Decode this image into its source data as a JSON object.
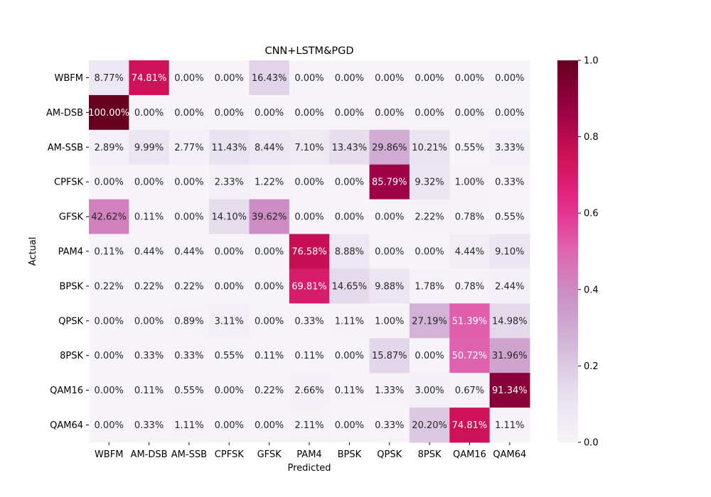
{
  "chart_data": {
    "type": "heatmap",
    "title": "CNN+LSTM&PGD",
    "xlabel": "Predicted",
    "ylabel": "Actual",
    "x_categories": [
      "WBFM",
      "AM-DSB",
      "AM-SSB",
      "CPFSK",
      "GFSK",
      "PAM4",
      "BPSK",
      "QPSK",
      "8PSK",
      "QAM16",
      "QAM64"
    ],
    "y_categories": [
      "WBFM",
      "AM-DSB",
      "AM-SSB",
      "CPFSK",
      "GFSK",
      "PAM4",
      "BPSK",
      "QPSK",
      "8PSK",
      "QAM16",
      "QAM64"
    ],
    "values": [
      [
        8.77,
        74.81,
        0.0,
        0.0,
        16.43,
        0.0,
        0.0,
        0.0,
        0.0,
        0.0,
        0.0
      ],
      [
        100.0,
        0.0,
        0.0,
        0.0,
        0.0,
        0.0,
        0.0,
        0.0,
        0.0,
        0.0,
        0.0
      ],
      [
        2.89,
        9.99,
        2.77,
        11.43,
        8.44,
        7.1,
        13.43,
        29.86,
        10.21,
        0.55,
        3.33
      ],
      [
        0.0,
        0.0,
        0.0,
        2.33,
        1.22,
        0.0,
        0.0,
        85.79,
        9.32,
        1.0,
        0.33
      ],
      [
        42.62,
        0.11,
        0.0,
        14.1,
        39.62,
        0.0,
        0.0,
        0.0,
        2.22,
        0.78,
        0.55
      ],
      [
        0.11,
        0.44,
        0.44,
        0.0,
        0.0,
        76.58,
        8.88,
        0.0,
        0.0,
        4.44,
        9.1
      ],
      [
        0.22,
        0.22,
        0.22,
        0.0,
        0.0,
        69.81,
        14.65,
        9.88,
        1.78,
        0.78,
        2.44
      ],
      [
        0.0,
        0.0,
        0.89,
        3.11,
        0.0,
        0.33,
        1.11,
        1.0,
        27.19,
        51.39,
        14.98
      ],
      [
        0.0,
        0.33,
        0.33,
        0.55,
        0.11,
        0.11,
        0.0,
        15.87,
        0.0,
        50.72,
        31.96
      ],
      [
        0.0,
        0.11,
        0.55,
        0.0,
        0.22,
        2.66,
        0.11,
        1.33,
        3.0,
        0.67,
        91.34
      ],
      [
        0.0,
        0.33,
        1.11,
        0.0,
        0.0,
        2.11,
        0.0,
        0.33,
        20.2,
        74.81,
        1.11
      ]
    ],
    "value_suffix": "%",
    "colorbar": {
      "min": 0.0,
      "max": 1.0,
      "ticks": [
        "0.0",
        "0.2",
        "0.4",
        "0.6",
        "0.8",
        "1.0"
      ],
      "colormap": "PuRd"
    },
    "legend": "colorbar-right",
    "grid": false
  }
}
